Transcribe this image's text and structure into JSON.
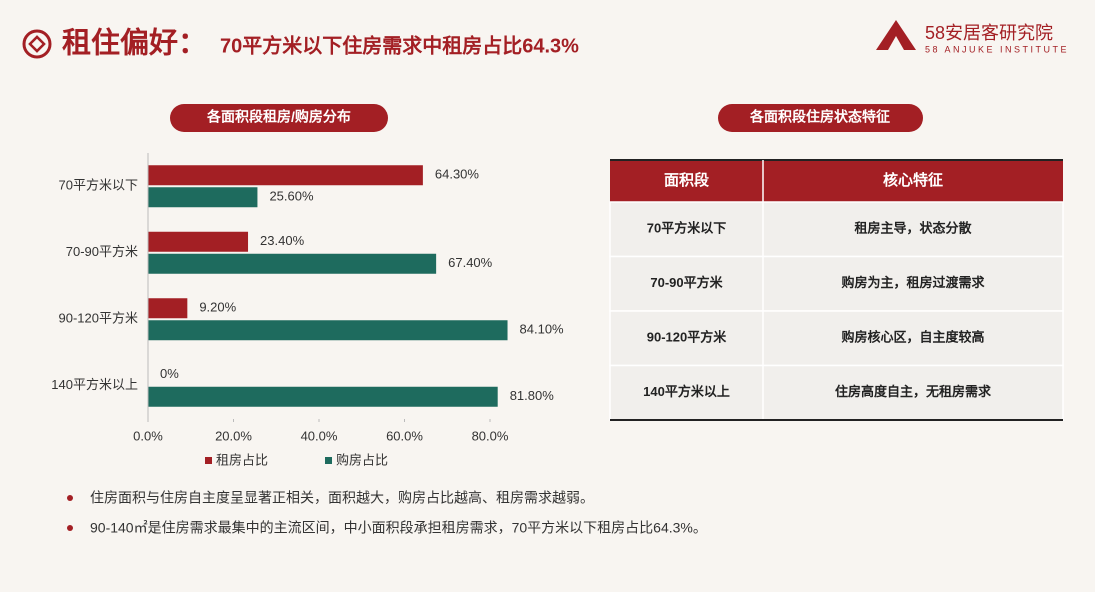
{
  "header": {
    "title": "租住偏好：",
    "subtitle": "70平方米以下住房需求中租房占比64.3%",
    "logo": "58安居客研究院",
    "logo_en": "58 ANJUKE INSTITUTE"
  },
  "chart_data": {
    "type": "bar",
    "orientation": "horizontal",
    "title": "各面积段租房/购房分布",
    "categories": [
      "70平方米以下",
      "70-90平方米",
      "90-120平方米",
      "140平方米以上"
    ],
    "series": [
      {
        "name": "租房占比",
        "color": "#a31f24",
        "values": [
          64.3,
          23.4,
          9.2,
          0
        ],
        "value_labels": [
          "64.30%",
          "23.40%",
          "9.20%",
          "0%"
        ]
      },
      {
        "name": "购房占比",
        "color": "#1e6b5e",
        "values": [
          25.6,
          67.4,
          84.1,
          81.8
        ],
        "value_labels": [
          "25.60%",
          "67.40%",
          "84.10%",
          "81.80%"
        ]
      }
    ],
    "xlim": [
      0,
      90
    ],
    "xticks": [
      {
        "value": 0,
        "label": "0.0%"
      },
      {
        "value": 20,
        "label": "20.0%"
      },
      {
        "value": 40,
        "label": "40.0%"
      },
      {
        "value": 60,
        "label": "60.0%"
      },
      {
        "value": 80,
        "label": "80.0%"
      }
    ],
    "legend": "bottom"
  },
  "table": {
    "title": "各面积段住房状态特征",
    "headers": [
      "面积段",
      "核心特征"
    ],
    "rows": [
      [
        "70平方米以下",
        "租房主导，状态分散"
      ],
      [
        "70-90平方米",
        "购房为主，租房过渡需求"
      ],
      [
        "90-120平方米",
        "购房核心区，自主度较高"
      ],
      [
        "140平方米以上",
        "住房高度自主，无租房需求"
      ]
    ]
  },
  "bullets": [
    "住房面积与住房自主度呈显著正相关，面积越大，购房占比越高、租房需求越弱。",
    "90-140㎡是住房需求最集中的主流区间，中小面积段承担租房需求，70平方米以下租房占比64.3%。"
  ]
}
